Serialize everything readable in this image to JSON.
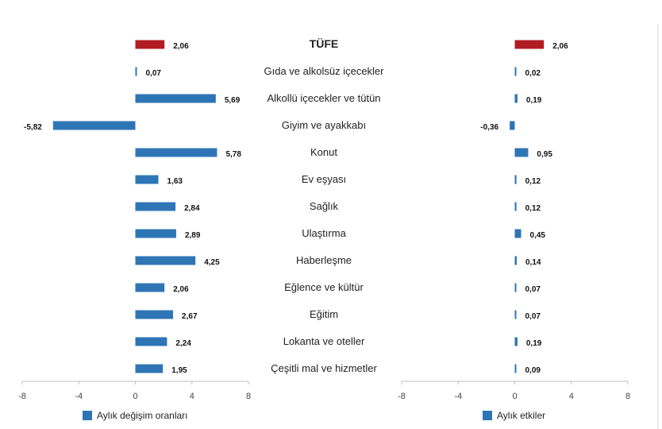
{
  "chart_data": {
    "type": "bar",
    "orientation": "horizontal",
    "categories": [
      "TÜFE",
      "Gıda ve alkolsüz içecekler",
      "Alkollü içecekler ve tütün",
      "Giyim ve ayakkabı",
      "Konut",
      "Ev eşyası",
      "Sağlık",
      "Ulaştırma",
      "Haberleşme",
      "Eğlence ve kültür",
      "Eğitim",
      "Lokanta ve oteller",
      "Çeşitli mal ve hizmetler"
    ],
    "panels": [
      {
        "series_name": "Aylık değişim oranları",
        "values": [
          2.06,
          0.07,
          5.69,
          -5.82,
          5.78,
          1.63,
          2.84,
          2.89,
          4.25,
          2.06,
          2.67,
          2.24,
          1.95
        ],
        "labels": [
          "2,06",
          "0,07",
          "5,69",
          "-5,82",
          "5,78",
          "1,63",
          "2,84",
          "2,89",
          "4,25",
          "2,06",
          "2,67",
          "2,24",
          "1,95"
        ],
        "xlim": [
          -8,
          8
        ],
        "ticks": [
          "-8",
          "-4",
          "0",
          "4",
          "8"
        ]
      },
      {
        "series_name": "Aylık etkiler",
        "values": [
          2.06,
          0.02,
          0.19,
          -0.36,
          0.95,
          0.12,
          0.12,
          0.45,
          0.14,
          0.07,
          0.07,
          0.19,
          0.09
        ],
        "labels": [
          "2,06",
          "0,02",
          "0,19",
          "-0,36",
          "0,95",
          "0,12",
          "0,12",
          "0,45",
          "0,14",
          "0,07",
          "0,07",
          "0,19",
          "0,09"
        ],
        "xlim": [
          -8,
          8
        ],
        "ticks": [
          "-8",
          "-4",
          "0",
          "4",
          "8"
        ]
      }
    ],
    "colors": {
      "series": "#2e75b6",
      "highlight": "#b01c22"
    },
    "highlight_index": 0,
    "legend_position": "bottom",
    "grid": false
  }
}
